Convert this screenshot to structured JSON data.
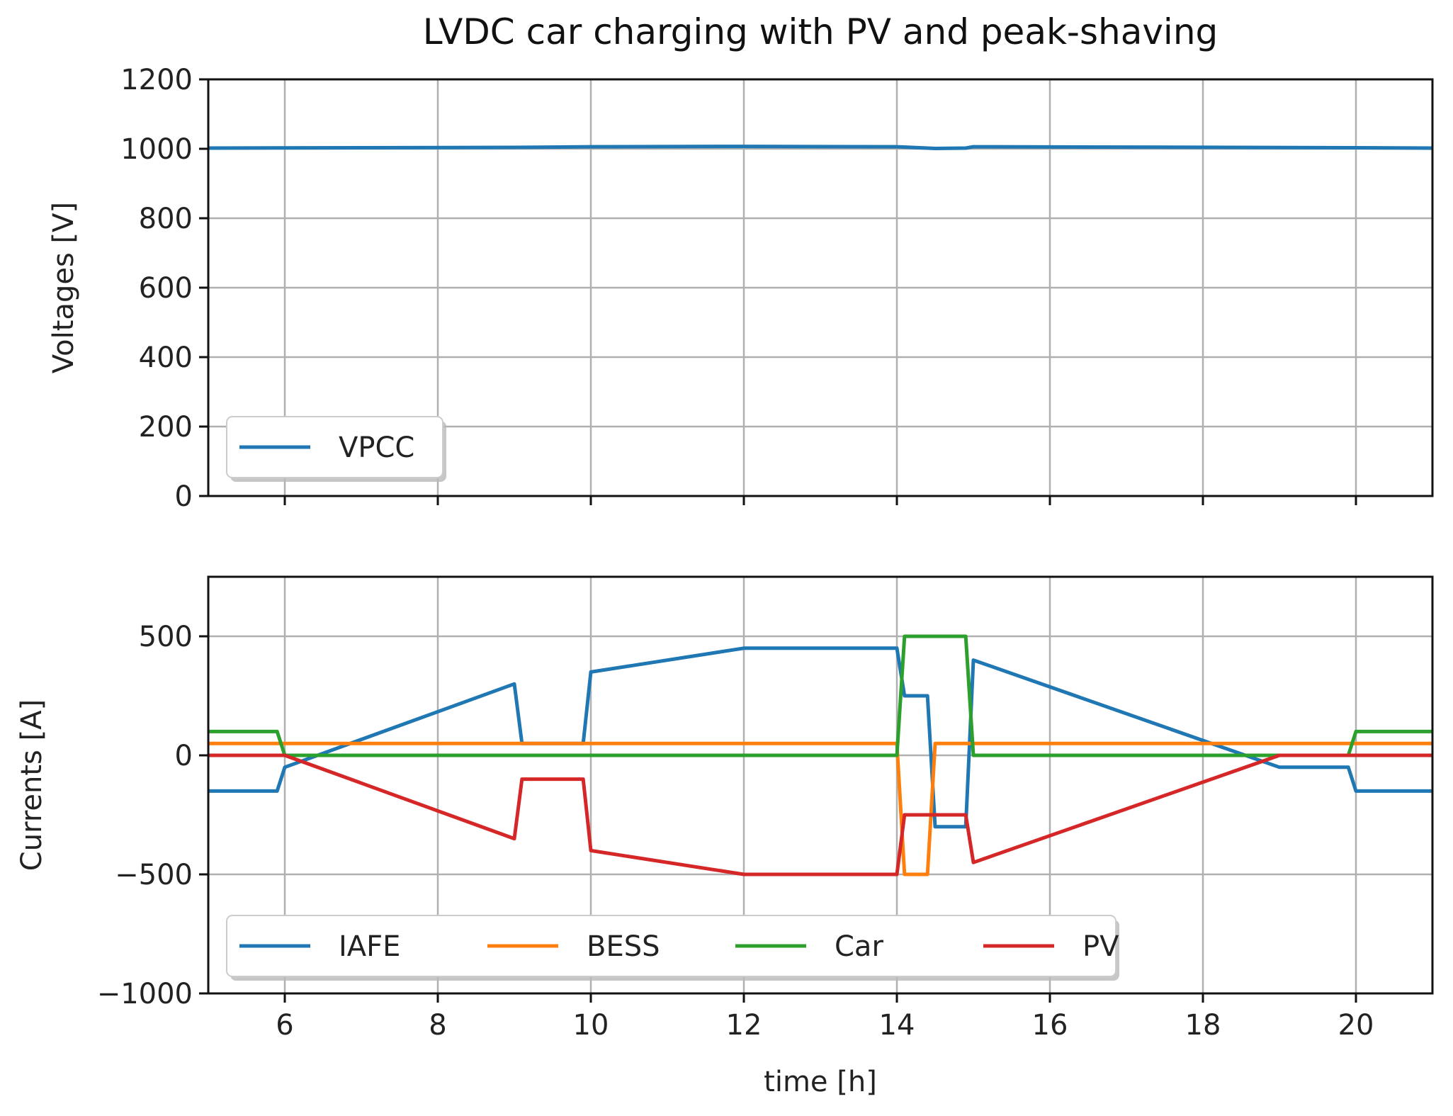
{
  "chart_data": {
    "title": "LVDC car charging with PV and peak-shaving",
    "xlabel": "time [h]",
    "xlim": [
      5,
      21
    ],
    "xticks": [
      6,
      8,
      10,
      12,
      14,
      16,
      18,
      20
    ],
    "xtick_labels": [
      "6",
      "8",
      "10",
      "12",
      "14",
      "16",
      "18",
      "20"
    ],
    "grid": true,
    "subplots": [
      {
        "type": "line",
        "ylabel": "Voltages [V]",
        "ylim": [
          0,
          1200
        ],
        "yticks": [
          0,
          200,
          400,
          600,
          800,
          1000,
          1200
        ],
        "ytick_labels": [
          "0",
          "200",
          "400",
          "600",
          "800",
          "1000",
          "1200"
        ],
        "legend_position": "lower-left",
        "series": [
          {
            "name": "VPCC",
            "color": "#1f77b4",
            "x": [
              5,
              9,
              10,
              12,
              14,
              14.5,
              14.9,
              15,
              17,
              20,
              21
            ],
            "y": [
              1002,
              1004,
              1006,
              1007,
              1006,
              1001,
              1002,
              1006,
              1005,
              1003,
              1002
            ]
          }
        ]
      },
      {
        "type": "line",
        "ylabel": "Currents [A]",
        "ylim": [
          -1000,
          750
        ],
        "yticks": [
          -1000,
          -500,
          0,
          500
        ],
        "ytick_labels": [
          "−1000",
          "−500",
          "0",
          "500"
        ],
        "legend_position": "lower-left",
        "series": [
          {
            "name": "IAFE",
            "color": "#1f77b4",
            "x": [
              5,
              5.9,
              6,
              9,
              9.1,
              9.9,
              10,
              12,
              14,
              14.1,
              14.4,
              14.5,
              14.9,
              15,
              19,
              19.9,
              20,
              21
            ],
            "y": [
              -150,
              -150,
              -50,
              300,
              50,
              50,
              350,
              450,
              450,
              250,
              250,
              -300,
              -300,
              400,
              -50,
              -50,
              -150,
              -150
            ]
          },
          {
            "name": "BESS",
            "color": "#ff7f0e",
            "x": [
              5,
              14,
              14.1,
              14.4,
              14.5,
              21
            ],
            "y": [
              50,
              50,
              -500,
              -500,
              50,
              50
            ]
          },
          {
            "name": "Car",
            "color": "#2ca02c",
            "x": [
              5,
              5.9,
              6,
              14,
              14.1,
              14.9,
              15,
              19.9,
              20,
              21
            ],
            "y": [
              100,
              100,
              0,
              0,
              500,
              500,
              0,
              0,
              100,
              100
            ]
          },
          {
            "name": "PV",
            "color": "#d62728",
            "x": [
              5,
              6,
              9,
              9.1,
              9.9,
              10,
              12,
              14,
              14.1,
              14.9,
              15,
              19,
              21
            ],
            "y": [
              0,
              0,
              -350,
              -100,
              -100,
              -400,
              -500,
              -500,
              -250,
              -250,
              -450,
              0,
              0
            ]
          }
        ]
      }
    ]
  }
}
